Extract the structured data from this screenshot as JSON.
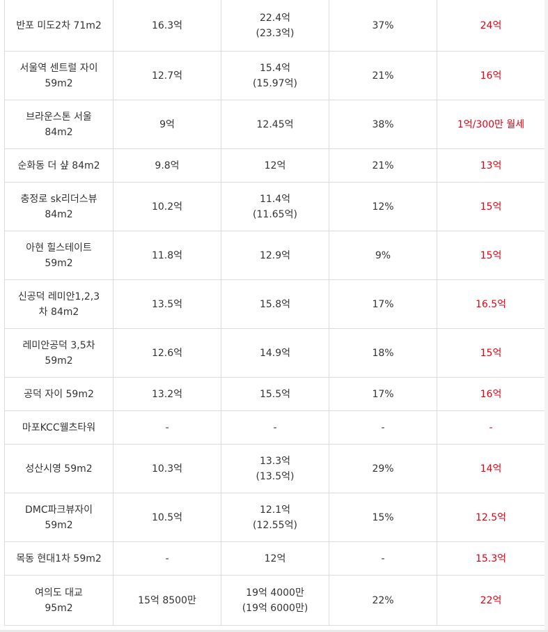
{
  "rows": [
    {
      "name": "반포 미도2차 71m2",
      "c2": "16.3억",
      "c3": "22.4억\n(23.3억)",
      "c4": "37%",
      "c5": "24억"
    },
    {
      "name": "서울역 센트럴 자이\n59m2",
      "c2": "12.7억",
      "c3": "15.4억\n(15.97억)",
      "c4": "21%",
      "c5": "16억"
    },
    {
      "name": "브라운스톤 서울\n84m2",
      "c2": "9억",
      "c3": "12.45억",
      "c4": "38%",
      "c5": "1억/300만 월세"
    },
    {
      "name": "순화동 더 샾 84m2",
      "c2": "9.8억",
      "c3": "12억",
      "c4": "21%",
      "c5": "13억"
    },
    {
      "name": "충정로 sk리더스뷰\n84m2",
      "c2": "10.2억",
      "c3": "11.4억\n(11.65억)",
      "c4": "12%",
      "c5": "15억"
    },
    {
      "name": "아현 힐스테이트\n59m2",
      "c2": "11.8억",
      "c3": "12.9억",
      "c4": "9%",
      "c5": "15억"
    },
    {
      "name": "신공덕 레미안1,2,3\n차 84m2",
      "c2": "13.5억",
      "c3": "15.8억",
      "c4": "17%",
      "c5": "16.5억"
    },
    {
      "name": "레미안공덕 3,5차\n59m2",
      "c2": "12.6억",
      "c3": "14.9억",
      "c4": "18%",
      "c5": "15억"
    },
    {
      "name": "공덕 자이 59m2",
      "c2": "13.2억",
      "c3": "15.5억",
      "c4": "17%",
      "c5": "16억"
    },
    {
      "name": "마포KCC웰츠타워",
      "c2": "-",
      "c3": "-",
      "c4": "-",
      "c5": "-"
    },
    {
      "name": "성산시영 59m2",
      "c2": "10.3억",
      "c3": "13.3억\n(13.5억)",
      "c4": "29%",
      "c5": "14억"
    },
    {
      "name": "DMC파크뷰자이\n59m2",
      "c2": "10.5억",
      "c3": "12.1억\n(12.55억)",
      "c4": "15%",
      "c5": "12.5억"
    },
    {
      "name": "목동 현대1차 59m2",
      "c2": "-",
      "c3": "12억",
      "c4": "-",
      "c5": "15.3억"
    },
    {
      "name": "여의도 대교\n95m2",
      "c2": "15억 8500만",
      "c3": "19억 4000만\n(19억 6000만)",
      "c4": "22%",
      "c5": "22억"
    }
  ],
  "colors": {
    "highlight": "#e60012",
    "text": "#333333",
    "border": "#dcdcdc"
  }
}
